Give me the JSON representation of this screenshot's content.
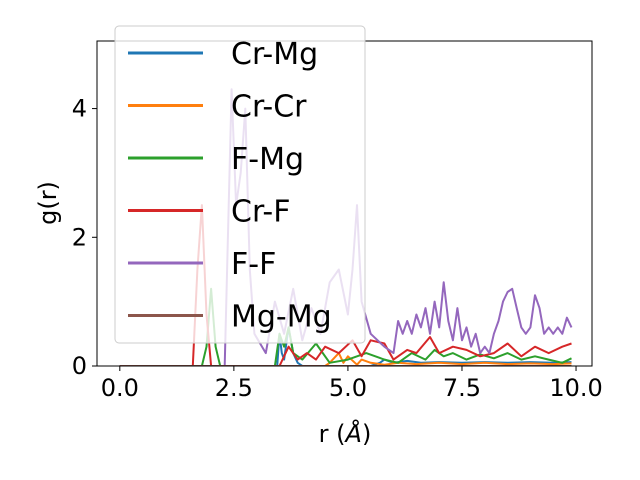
{
  "chart_data": {
    "type": "line",
    "xlabel": "r (",
    "xlabel_unit": "Å",
    "xlabel_close": ")",
    "ylabel": "g(r)",
    "xlim": [
      -0.5,
      10.35
    ],
    "ylim": [
      0,
      5.05
    ],
    "xticks": [
      0.0,
      2.5,
      5.0,
      7.5,
      10.0
    ],
    "xtick_labels": [
      "0.0",
      "2.5",
      "5.0",
      "7.5",
      "10.0"
    ],
    "yticks": [
      0,
      2,
      4
    ],
    "ytick_labels": [
      "0",
      "2",
      "4"
    ],
    "grid": false,
    "legend_position": "upper-left",
    "series": [
      {
        "name": "Cr-Mg",
        "color": "#1f77b4",
        "x": [
          0,
          1.5,
          3.45,
          3.5,
          3.55,
          3.6,
          3.7,
          3.8,
          3.9,
          4.0,
          4.5,
          5.0,
          5.5,
          5.7,
          5.8,
          6.0,
          6.3,
          6.6,
          7.0,
          7.5,
          8.0,
          8.5,
          9.0,
          9.5,
          9.9
        ],
        "y": [
          0,
          0,
          0,
          0.5,
          0.2,
          0.1,
          0.6,
          0.2,
          0.05,
          0,
          0,
          0,
          0,
          0.05,
          0.1,
          0.05,
          0.08,
          0.05,
          0.06,
          0.05,
          0.06,
          0.05,
          0.06,
          0.05,
          0.06
        ]
      },
      {
        "name": "Cr-Cr",
        "color": "#ff7f0e",
        "x": [
          0,
          4.5,
          4.6,
          4.8,
          4.9,
          5.0,
          5.2,
          5.3,
          5.5,
          5.8,
          6.1,
          6.5,
          7.0,
          7.5,
          8.0,
          8.5,
          9.0,
          9.5,
          9.9
        ],
        "y": [
          0,
          0,
          0.05,
          0.2,
          0.05,
          0.15,
          0.02,
          0.1,
          0.05,
          0.02,
          0.05,
          0.03,
          0.05,
          0.03,
          0.05,
          0.03,
          0.04,
          0.03,
          0.04
        ]
      },
      {
        "name": "F-Mg",
        "color": "#2ca02c",
        "x": [
          0,
          1.8,
          1.9,
          2.0,
          2.1,
          2.2,
          3.4,
          3.5,
          3.6,
          3.7,
          3.8,
          4.0,
          4.3,
          4.6,
          5.0,
          5.4,
          5.8,
          6.1,
          6.4,
          6.7,
          6.9,
          7.1,
          7.3,
          7.6,
          7.9,
          8.2,
          8.5,
          8.8,
          9.1,
          9.4,
          9.7,
          9.9
        ],
        "y": [
          0,
          0,
          0.3,
          1.2,
          0.3,
          0,
          0,
          0.5,
          0.3,
          0.6,
          0.2,
          0.1,
          0.35,
          0.05,
          0.1,
          0.2,
          0.1,
          0.05,
          0.2,
          0.1,
          0.25,
          0.15,
          0.2,
          0.1,
          0.18,
          0.12,
          0.2,
          0.1,
          0.15,
          0.1,
          0.05,
          0.12
        ]
      },
      {
        "name": "Cr-F",
        "color": "#d62728",
        "x": [
          0,
          1.6,
          1.7,
          1.8,
          1.9,
          2.0,
          3.5,
          3.7,
          3.9,
          4.1,
          4.3,
          4.5,
          4.8,
          5.1,
          5.3,
          5.5,
          5.8,
          6.0,
          6.3,
          6.5,
          6.8,
          7.0,
          7.3,
          7.6,
          7.9,
          8.2,
          8.5,
          8.8,
          9.1,
          9.4,
          9.7,
          9.9
        ],
        "y": [
          0,
          0,
          1.5,
          2.5,
          0.8,
          0,
          0,
          0.3,
          0.1,
          0.2,
          0.1,
          0.3,
          0.2,
          0.4,
          0.15,
          0.4,
          0.35,
          0.1,
          0.25,
          0.2,
          0.45,
          0.2,
          0.3,
          0.25,
          0.15,
          0.2,
          0.35,
          0.15,
          0.3,
          0.2,
          0.3,
          0.35
        ]
      },
      {
        "name": "F-F",
        "color": "#9467bd",
        "x": [
          0,
          2.3,
          2.45,
          2.55,
          2.65,
          2.75,
          2.85,
          2.95,
          3.2,
          3.4,
          3.6,
          3.8,
          4.0,
          4.2,
          4.4,
          4.6,
          4.8,
          5.0,
          5.1,
          5.2,
          5.3,
          5.5,
          5.8,
          6.0,
          6.1,
          6.2,
          6.3,
          6.4,
          6.5,
          6.6,
          6.7,
          6.8,
          6.9,
          7.0,
          7.1,
          7.2,
          7.3,
          7.4,
          7.5,
          7.6,
          7.7,
          7.8,
          7.9,
          8.0,
          8.1,
          8.2,
          8.3,
          8.4,
          8.5,
          8.6,
          8.7,
          8.8,
          8.9,
          9.0,
          9.1,
          9.2,
          9.3,
          9.4,
          9.5,
          9.6,
          9.7,
          9.8,
          9.9
        ],
        "y": [
          0,
          0,
          4.3,
          2.5,
          3.0,
          4.0,
          1.5,
          0.5,
          0.2,
          1.0,
          0.5,
          1.2,
          0.4,
          0.9,
          0.5,
          1.3,
          1.5,
          0.8,
          1.5,
          2.5,
          1.0,
          0.5,
          0.3,
          0.2,
          0.7,
          0.5,
          0.7,
          0.5,
          0.8,
          0.6,
          0.9,
          0.5,
          1.0,
          0.6,
          1.3,
          0.7,
          0.4,
          0.9,
          0.4,
          0.6,
          0.3,
          0.5,
          0.2,
          0.3,
          0.2,
          0.5,
          0.7,
          1.0,
          1.15,
          1.2,
          0.9,
          0.6,
          0.5,
          0.6,
          1.1,
          0.9,
          0.5,
          0.6,
          0.5,
          0.6,
          0.5,
          0.75,
          0.6
        ]
      },
      {
        "name": "Mg-Mg",
        "color": "#8c564b",
        "x": [
          0,
          9.9
        ],
        "y": [
          0,
          0
        ]
      }
    ]
  }
}
